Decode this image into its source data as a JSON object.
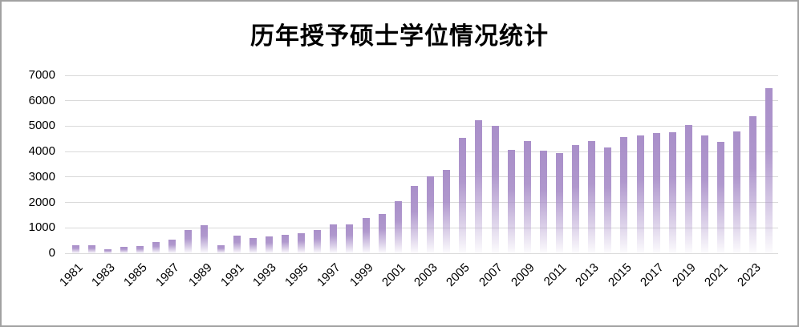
{
  "title": "历年授予硕士学位情况统计",
  "frame": {
    "border_color": "#a2a2a2",
    "background": "#ffffff"
  },
  "chart_data": {
    "type": "bar",
    "title": "历年授予硕士学位情况统计",
    "xlabel": "",
    "ylabel": "",
    "ylim": [
      0,
      7000
    ],
    "y_ticks": [
      0,
      1000,
      2000,
      3000,
      4000,
      5000,
      6000,
      7000
    ],
    "grid": true,
    "legend_position": "none",
    "x_tick_labels": [
      "1981",
      "1983",
      "1985",
      "1987",
      "1989",
      "1991",
      "1993",
      "1995",
      "1997",
      "1999",
      "2001",
      "2003",
      "2005",
      "2007",
      "2009",
      "2011",
      "2013",
      "2015",
      "2017",
      "2019",
      "2021",
      "2023"
    ],
    "categories": [
      1981,
      1982,
      1983,
      1984,
      1985,
      1986,
      1987,
      1988,
      1989,
      1990,
      1991,
      1992,
      1993,
      1994,
      1995,
      1996,
      1997,
      1998,
      1999,
      2000,
      2001,
      2002,
      2003,
      2004,
      2005,
      2006,
      2007,
      2008,
      2009,
      2010,
      2011,
      2012,
      2013,
      2014,
      2015,
      2016,
      2017,
      2018,
      2019,
      2020,
      2021,
      2022,
      2023,
      2024
    ],
    "values": [
      330,
      330,
      150,
      260,
      290,
      440,
      540,
      920,
      1090,
      320,
      700,
      590,
      650,
      720,
      800,
      910,
      1120,
      1140,
      1380,
      1550,
      2040,
      2650,
      3040,
      3280,
      4550,
      5240,
      5000,
      4070,
      4410,
      4040,
      3930,
      4270,
      4420,
      4160,
      4580,
      4640,
      4720,
      4750,
      5040,
      4620,
      4370,
      4780,
      5390,
      6510
    ],
    "colors": {
      "bar_top": "#a98fc9",
      "bar_rgb": "169,143,201",
      "gridline": "#d9d9d9",
      "text": "#000000"
    }
  }
}
